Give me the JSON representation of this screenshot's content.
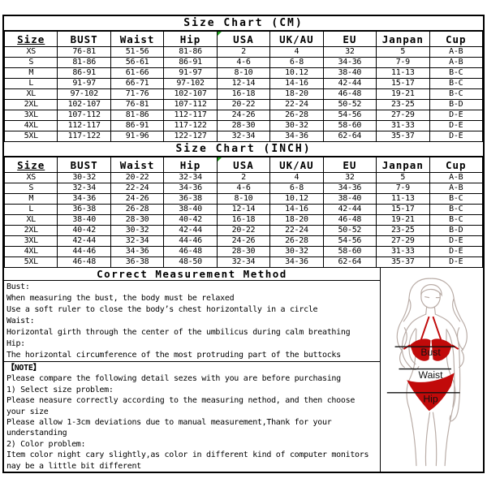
{
  "tables": {
    "cm": {
      "title": "Size Chart (CM)",
      "headers": [
        "Size",
        "BUST",
        "Waist",
        "Hip",
        "USA",
        "UK/AU",
        "EU",
        "Janpan",
        "Cup"
      ],
      "rows": [
        [
          "XS",
          "76-81",
          "51-56",
          "81-86",
          "2",
          "4",
          "32",
          "5",
          "A-B"
        ],
        [
          "S",
          "81-86",
          "56-61",
          "86-91",
          "4-6",
          "6-8",
          "34-36",
          "7-9",
          "A-B"
        ],
        [
          "M",
          "86-91",
          "61-66",
          "91-97",
          "8-10",
          "10.12",
          "38-40",
          "11-13",
          "B-C"
        ],
        [
          "L",
          "91-97",
          "66-71",
          "97-102",
          "12-14",
          "14-16",
          "42-44",
          "15-17",
          "B-C"
        ],
        [
          "XL",
          "97-102",
          "71-76",
          "102-107",
          "16-18",
          "18-20",
          "46-48",
          "19-21",
          "B-C"
        ],
        [
          "2XL",
          "102-107",
          "76-81",
          "107-112",
          "20-22",
          "22-24",
          "50-52",
          "23-25",
          "B-D"
        ],
        [
          "3XL",
          "107-112",
          "81-86",
          "112-117",
          "24-26",
          "26-28",
          "54-56",
          "27-29",
          "D-E"
        ],
        [
          "4XL",
          "112-117",
          "86-91",
          "117-122",
          "28-30",
          "30-32",
          "58-60",
          "31-33",
          "D-E"
        ],
        [
          "5XL",
          "117-122",
          "91-96",
          "122-127",
          "32-34",
          "34-36",
          "62-64",
          "35-37",
          "D-E"
        ]
      ]
    },
    "inch": {
      "title": "Size Chart (INCH)",
      "headers": [
        "Size",
        "BUST",
        "Waist",
        "Hip",
        "USA",
        "UK/AU",
        "EU",
        "Janpan",
        "Cup"
      ],
      "rows": [
        [
          "XS",
          "30-32",
          "20-22",
          "32-34",
          "2",
          "4",
          "32",
          "5",
          "A-B"
        ],
        [
          "S",
          "32-34",
          "22-24",
          "34-36",
          "4-6",
          "6-8",
          "34-36",
          "7-9",
          "A-B"
        ],
        [
          "M",
          "34-36",
          "24-26",
          "36-38",
          "8-10",
          "10.12",
          "38-40",
          "11-13",
          "B-C"
        ],
        [
          "L",
          "36-38",
          "26-28",
          "38-40",
          "12-14",
          "14-16",
          "42-44",
          "15-17",
          "B-C"
        ],
        [
          "XL",
          "38-40",
          "28-30",
          "40-42",
          "16-18",
          "18-20",
          "46-48",
          "19-21",
          "B-C"
        ],
        [
          "2XL",
          "40-42",
          "30-32",
          "42-44",
          "20-22",
          "22-24",
          "50-52",
          "23-25",
          "B-D"
        ],
        [
          "3XL",
          "42-44",
          "32-34",
          "44-46",
          "24-26",
          "26-28",
          "54-56",
          "27-29",
          "D-E"
        ],
        [
          "4XL",
          "44-46",
          "34-36",
          "46-48",
          "28-30",
          "30-32",
          "58-60",
          "31-33",
          "D-E"
        ],
        [
          "5XL",
          "46-48",
          "36-38",
          "48-50",
          "32-34",
          "34-36",
          "62-64",
          "35-37",
          "D-E"
        ]
      ]
    }
  },
  "measurement": {
    "title": "Correct Measurement Method",
    "lines": [
      "Bust:",
      "When measuring the bust, the body must be relaxed",
      "Use a soft ruler to close the body’s chest horizontally in a circle",
      "Waist:",
      "Horizontal girth through the center of the umbilicus during calm breathing",
      "Hip:",
      "The horizontal circumference of the most protruding part of the buttocks"
    ]
  },
  "note": {
    "lines": [
      "【NOTE】",
      "Please compare the following detail sezes with you are before purchasing",
      "1) Select size problem:",
      "Please neasure correctly according to the measuring nethod, and then choose",
      "your size",
      "Please allow 1-3cm deviations due to manual measurement,Thank for your",
      "understanding",
      "2) Color problem:",
      "Item color night cary slightly,as color in different kind of computer monitors",
      "nay be a little bit different"
    ]
  },
  "figure": {
    "bust_label": "Bust",
    "waist_label": "Waist",
    "hip_label": "Hip"
  },
  "colors": {
    "border": "#000000",
    "text": "#000000",
    "bikini_red": "#c10a0a",
    "outline_gray": "#b9aca6",
    "comment_green": "#1fa51f"
  }
}
